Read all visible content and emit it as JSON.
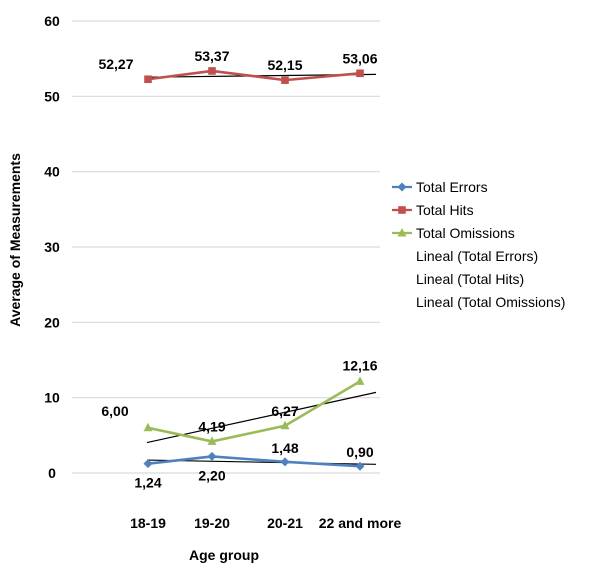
{
  "chart_data": {
    "type": "line",
    "title": "",
    "xlabel": "Age group",
    "ylabel": "Average of Measurements",
    "categories": [
      "18-19",
      "19-20",
      "20-21",
      "22 and more"
    ],
    "ylim": [
      0,
      60
    ],
    "yticks": [
      "0",
      "10",
      "20",
      "30",
      "40",
      "50",
      "60"
    ],
    "grid": true,
    "legend_position": "right",
    "series": [
      {
        "name": "Total Errors",
        "values": [
          1.24,
          2.2,
          1.48,
          0.9
        ],
        "labels": [
          "1,24",
          "2,20",
          "1,48",
          "0,90"
        ],
        "color": "#4f81bd",
        "marker": "diamond"
      },
      {
        "name": "Total Hits",
        "values": [
          52.27,
          53.37,
          52.15,
          53.06
        ],
        "labels": [
          "52,27",
          "53,37",
          "52,15",
          "53,06"
        ],
        "color": "#c0504d",
        "marker": "square"
      },
      {
        "name": "Total Omissions",
        "values": [
          6.0,
          4.19,
          6.27,
          12.16
        ],
        "labels": [
          "6,00",
          "4,19",
          "6,27",
          "12,16"
        ],
        "color": "#9bbb59",
        "marker": "triangle"
      }
    ],
    "trendlines": [
      {
        "name": "Lineal (Total Errors)",
        "color": "#000000"
      },
      {
        "name": "Lineal (Total Hits)",
        "color": "#000000"
      },
      {
        "name": "Lineal (Total Omissions)",
        "color": "#000000"
      }
    ]
  }
}
